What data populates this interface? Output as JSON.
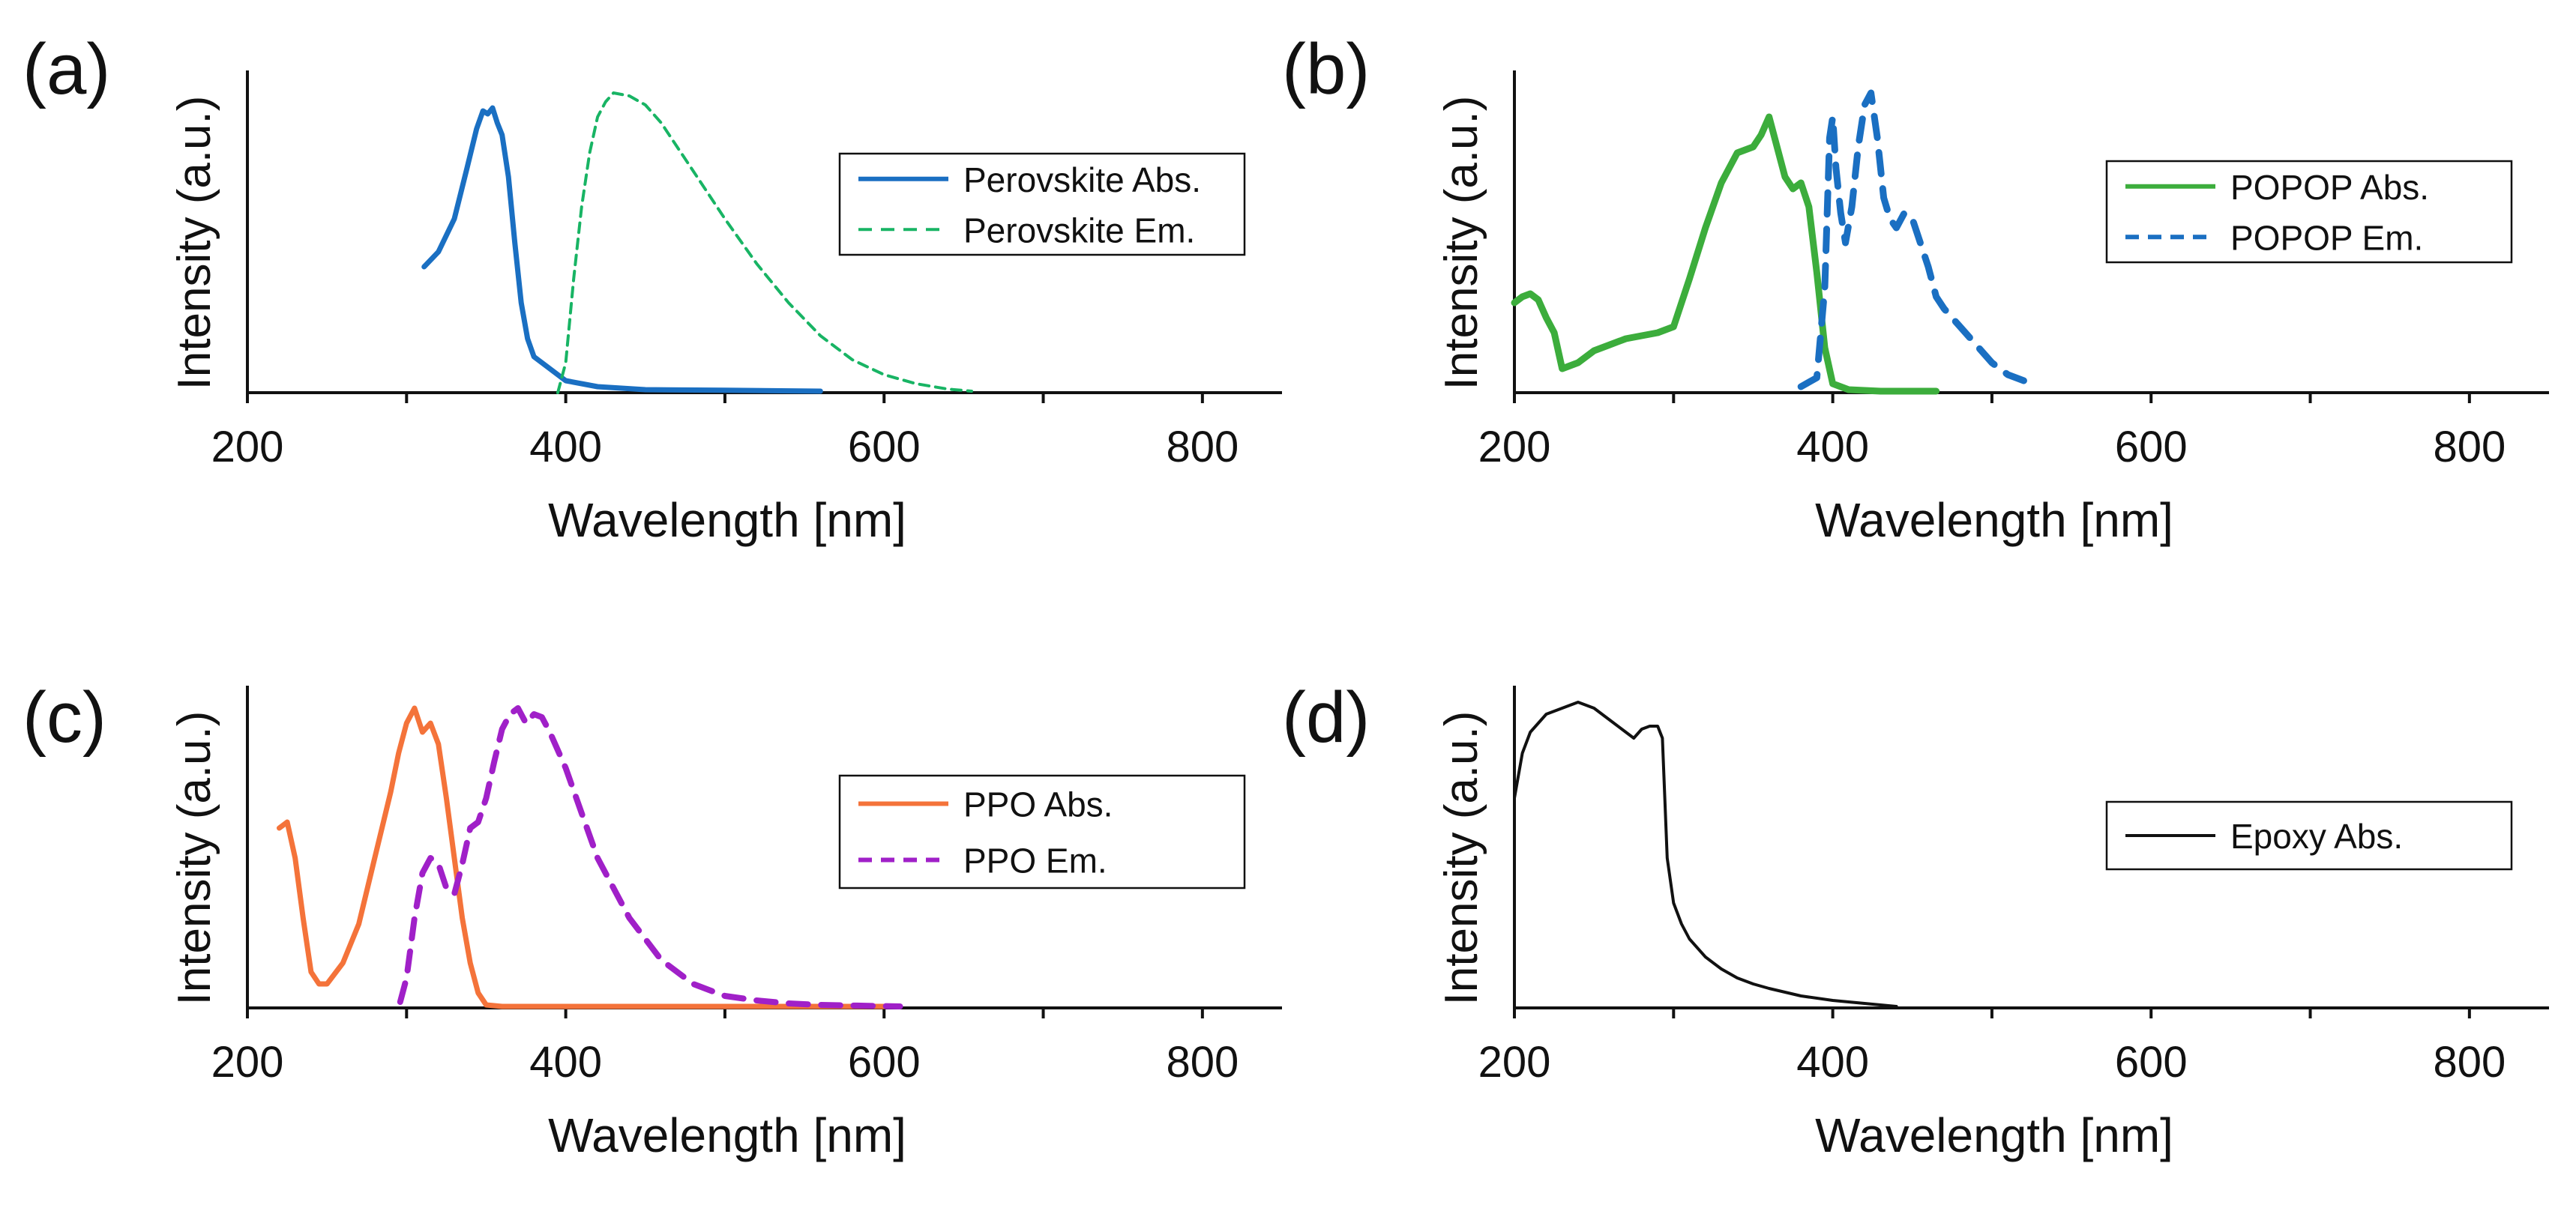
{
  "figure": {
    "panels": [
      "(a)",
      "(b)",
      "(c)",
      "(d)"
    ]
  },
  "chart_data": [
    {
      "panel_label": "(a)",
      "type": "line",
      "xlabel": "Wavelength [nm]",
      "ylabel": "Intensity (a.u.)",
      "xlim": [
        200,
        850
      ],
      "ylim": [
        0,
        1.05
      ],
      "xticks": [
        200,
        400,
        600,
        800
      ],
      "minor_xticks": [
        300,
        500,
        700
      ],
      "legend_position": "top-right",
      "series": [
        {
          "name": "Perovskite Abs.",
          "color": "#1a6fc2",
          "dash": "solid",
          "width": 7,
          "x": [
            311,
            320,
            330,
            338,
            344,
            348,
            351,
            354,
            357,
            360,
            364,
            368,
            372,
            376,
            380,
            385,
            390,
            400,
            420,
            450,
            500,
            560
          ],
          "y": [
            0.42,
            0.47,
            0.58,
            0.75,
            0.88,
            0.94,
            0.93,
            0.95,
            0.9,
            0.86,
            0.72,
            0.5,
            0.3,
            0.18,
            0.12,
            0.1,
            0.08,
            0.04,
            0.02,
            0.01,
            0.008,
            0.005
          ]
        },
        {
          "name": "Perovskite Em.",
          "color": "#18b464",
          "dash": "dashed",
          "width": 4,
          "x": [
            395,
            400,
            405,
            410,
            415,
            420,
            425,
            430,
            440,
            450,
            460,
            470,
            480,
            500,
            520,
            540,
            560,
            580,
            600,
            620,
            640,
            655
          ],
          "y": [
            0.0,
            0.1,
            0.38,
            0.62,
            0.8,
            0.92,
            0.97,
            1.0,
            0.99,
            0.96,
            0.9,
            0.82,
            0.74,
            0.58,
            0.43,
            0.3,
            0.19,
            0.11,
            0.06,
            0.03,
            0.012,
            0.005
          ]
        }
      ]
    },
    {
      "panel_label": "(b)",
      "type": "line",
      "xlabel": "Wavelength [nm]",
      "ylabel": "Intensity (a.u.)",
      "xlim": [
        200,
        850
      ],
      "ylim": [
        0,
        1.05
      ],
      "xticks": [
        200,
        400,
        600,
        800
      ],
      "minor_xticks": [
        300,
        500,
        700
      ],
      "legend_position": "top-right",
      "series": [
        {
          "name": "POPOP Abs.",
          "color": "#3cad3c",
          "dash": "solid",
          "width": 9,
          "x": [
            200,
            205,
            210,
            215,
            220,
            225,
            230,
            240,
            250,
            260,
            270,
            280,
            290,
            300,
            310,
            320,
            330,
            340,
            350,
            355,
            360,
            365,
            370,
            375,
            380,
            385,
            390,
            395,
            400,
            410,
            430,
            465
          ],
          "y": [
            0.3,
            0.32,
            0.33,
            0.31,
            0.25,
            0.2,
            0.08,
            0.1,
            0.14,
            0.16,
            0.18,
            0.19,
            0.2,
            0.22,
            0.38,
            0.55,
            0.7,
            0.8,
            0.82,
            0.86,
            0.92,
            0.82,
            0.72,
            0.68,
            0.7,
            0.62,
            0.4,
            0.15,
            0.03,
            0.01,
            0.005,
            0.005
          ]
        },
        {
          "name": "POPOP Em.",
          "color": "#1a6fc2",
          "dash": "dashed",
          "width": 9,
          "x": [
            380,
            390,
            395,
            398,
            400,
            402,
            405,
            408,
            412,
            416,
            420,
            424,
            428,
            432,
            436,
            440,
            445,
            450,
            455,
            460,
            465,
            470,
            480,
            490,
            500,
            510,
            520
          ],
          "y": [
            0.02,
            0.05,
            0.35,
            0.85,
            0.92,
            0.75,
            0.6,
            0.5,
            0.62,
            0.82,
            0.96,
            1.0,
            0.85,
            0.65,
            0.58,
            0.55,
            0.6,
            0.58,
            0.5,
            0.42,
            0.32,
            0.28,
            0.22,
            0.16,
            0.1,
            0.06,
            0.04
          ]
        }
      ]
    },
    {
      "panel_label": "(c)",
      "type": "line",
      "xlabel": "Wavelength [nm]",
      "ylabel": "Intensity (a.u.)",
      "xlim": [
        200,
        850
      ],
      "ylim": [
        0,
        1.05
      ],
      "xticks": [
        200,
        400,
        600,
        800
      ],
      "minor_xticks": [
        300,
        500,
        700
      ],
      "legend_position": "right",
      "series": [
        {
          "name": "PPO Abs.",
          "color": "#f4733a",
          "dash": "solid",
          "width": 7,
          "x": [
            220,
            225,
            230,
            235,
            240,
            245,
            250,
            260,
            270,
            280,
            290,
            295,
            300,
            305,
            310,
            315,
            320,
            325,
            330,
            335,
            340,
            345,
            350,
            360,
            400,
            500,
            610
          ],
          "y": [
            0.6,
            0.62,
            0.5,
            0.3,
            0.12,
            0.08,
            0.08,
            0.15,
            0.28,
            0.5,
            0.72,
            0.85,
            0.95,
            1.0,
            0.92,
            0.95,
            0.88,
            0.7,
            0.5,
            0.3,
            0.15,
            0.05,
            0.01,
            0.005,
            0.005,
            0.005,
            0.005
          ]
        },
        {
          "name": "PPO Em.",
          "color": "#a020c8",
          "dash": "dashed",
          "width": 8,
          "x": [
            296,
            300,
            305,
            310,
            315,
            320,
            325,
            330,
            335,
            340,
            345,
            350,
            355,
            360,
            365,
            370,
            375,
            380,
            385,
            390,
            400,
            410,
            420,
            440,
            460,
            480,
            500,
            520,
            540,
            560,
            580,
            610
          ],
          "y": [
            0.02,
            0.1,
            0.3,
            0.45,
            0.5,
            0.48,
            0.4,
            0.38,
            0.48,
            0.6,
            0.62,
            0.7,
            0.82,
            0.93,
            0.98,
            1.0,
            0.95,
            0.98,
            0.97,
            0.92,
            0.8,
            0.65,
            0.5,
            0.3,
            0.16,
            0.08,
            0.04,
            0.025,
            0.015,
            0.01,
            0.008,
            0.005
          ]
        }
      ]
    },
    {
      "panel_label": "(d)",
      "type": "line",
      "xlabel": "Wavelength [nm]",
      "ylabel": "Intensity (a.u.)",
      "xlim": [
        200,
        850
      ],
      "ylim": [
        0,
        1.05
      ],
      "xticks": [
        200,
        400,
        600,
        800
      ],
      "minor_xticks": [
        300,
        500,
        700
      ],
      "legend_position": "right",
      "series": [
        {
          "name": "Epoxy Abs.",
          "color": "#111111",
          "dash": "solid",
          "width": 4,
          "x": [
            200,
            205,
            210,
            220,
            230,
            240,
            250,
            260,
            270,
            275,
            280,
            285,
            290,
            293,
            296,
            300,
            305,
            310,
            320,
            330,
            340,
            350,
            360,
            380,
            400,
            420,
            440
          ],
          "y": [
            0.7,
            0.85,
            0.92,
            0.98,
            1.0,
            1.02,
            1.0,
            0.96,
            0.92,
            0.9,
            0.93,
            0.94,
            0.94,
            0.9,
            0.5,
            0.35,
            0.28,
            0.23,
            0.17,
            0.13,
            0.1,
            0.08,
            0.065,
            0.04,
            0.025,
            0.015,
            0.005
          ]
        }
      ]
    }
  ]
}
